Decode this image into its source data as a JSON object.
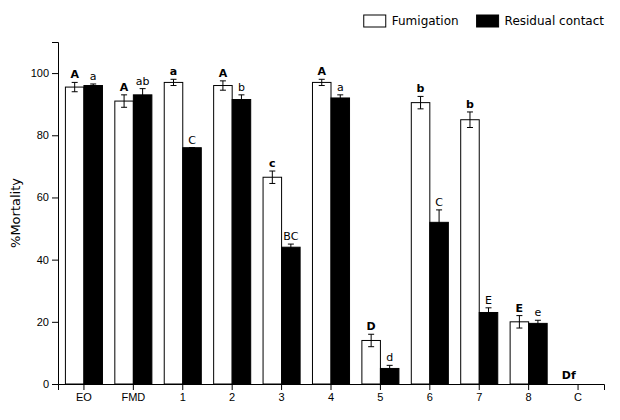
{
  "chart_data": {
    "type": "bar",
    "categories": [
      "EO",
      "FMD",
      "1",
      "2",
      "3",
      "4",
      "5",
      "6",
      "7",
      "8",
      "C"
    ],
    "series": [
      {
        "name": "Fumigation",
        "color": "white",
        "values": [
          95.5,
          91.0,
          97.0,
          96.0,
          66.5,
          97.0,
          14.0,
          90.5,
          85.0,
          20.0,
          0.0
        ],
        "errors": [
          1.5,
          2.0,
          1.0,
          1.5,
          2.0,
          1.0,
          2.0,
          2.0,
          2.5,
          2.0,
          0.0
        ],
        "letters": [
          "A",
          "A",
          "a",
          "A",
          "c",
          "A",
          "D",
          "b",
          "b",
          "E",
          null
        ]
      },
      {
        "name": "Residual contact",
        "color": "black",
        "values": [
          96.0,
          93.0,
          76.0,
          91.5,
          44.0,
          92.0,
          5.0,
          52.0,
          23.0,
          19.5,
          0.0
        ],
        "errors": [
          0.5,
          2.0,
          0.0,
          1.5,
          1.0,
          1.0,
          1.0,
          4.0,
          1.5,
          1.0,
          0.0
        ],
        "letters": [
          "a",
          "ab",
          "C",
          "b",
          "BC",
          "a",
          "d",
          "C",
          "E",
          "e",
          null
        ]
      }
    ],
    "annotations": [
      {
        "text": "Df",
        "category": "C"
      }
    ],
    "ylabel": "%Mortality",
    "ylim": [
      0,
      110
    ],
    "yticks": [
      0,
      20,
      40,
      60,
      80,
      100
    ],
    "grid": false,
    "legend": "upper right"
  }
}
